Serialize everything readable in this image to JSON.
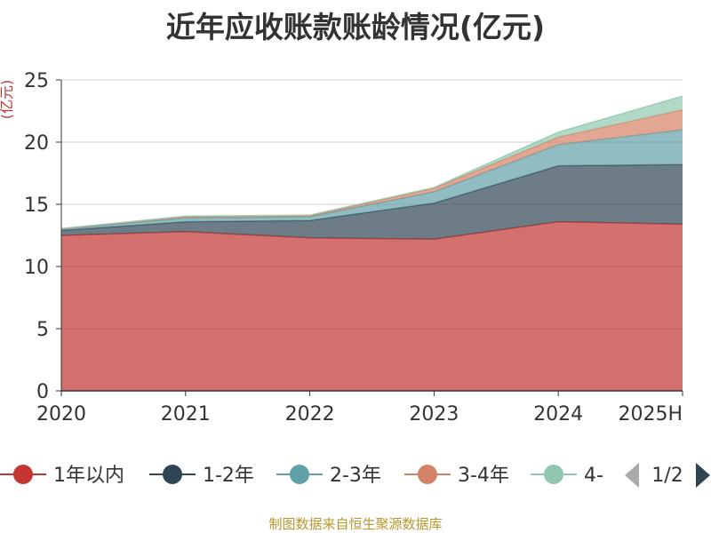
{
  "chart_data": {
    "type": "area",
    "stacked": true,
    "title": "近年应收账款账龄情况(亿元)",
    "ylabel": "(亿元)",
    "xlabel": "",
    "categories": [
      "2020",
      "2021",
      "2022",
      "2023",
      "2024",
      "2025H"
    ],
    "ylim": [
      0,
      25
    ],
    "yticks": [
      0,
      5,
      10,
      15,
      20,
      25
    ],
    "grid": true,
    "legend_position": "bottom",
    "series": [
      {
        "name": "1年以内",
        "color": "#c23531",
        "values": [
          12.5,
          12.8,
          12.3,
          12.2,
          13.6,
          13.4
        ]
      },
      {
        "name": "1-2年",
        "color": "#2f4554",
        "values": [
          0.4,
          0.8,
          1.4,
          2.9,
          4.5,
          4.8
        ]
      },
      {
        "name": "2-3年",
        "color": "#61a0a8",
        "values": [
          0.1,
          0.3,
          0.3,
          0.9,
          1.7,
          2.8
        ]
      },
      {
        "name": "3-4年",
        "color": "#d48265",
        "values": [
          0.03,
          0.1,
          0.08,
          0.3,
          0.6,
          1.6
        ]
      },
      {
        "name": "4-",
        "color": "#91c7ae",
        "values": [
          0.02,
          0.05,
          0.05,
          0.05,
          0.4,
          1.1
        ]
      }
    ]
  },
  "legend": {
    "page_indicator": "1/2"
  },
  "source_note": "制图数据来自恒生聚源数据库"
}
